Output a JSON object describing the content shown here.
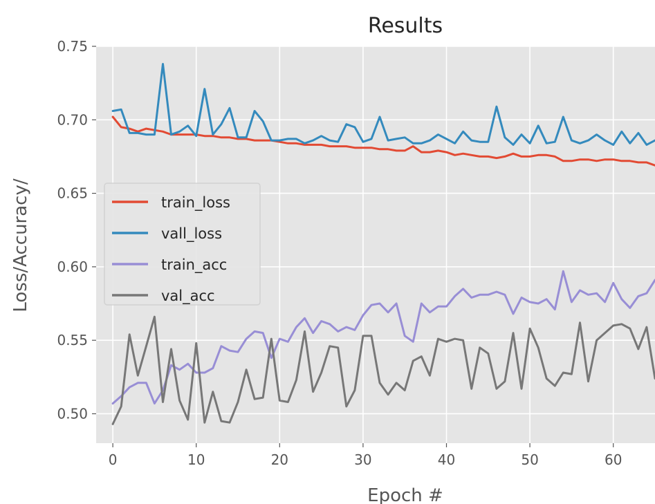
{
  "chart_data": {
    "type": "line",
    "title": "Results",
    "xlabel": "Epoch #",
    "ylabel": "Loss/Accuracy/",
    "xlim": [
      -2,
      65
    ],
    "ylim": [
      0.48,
      0.75
    ],
    "x_ticks": [
      0,
      10,
      20,
      30,
      40,
      50,
      60
    ],
    "y_ticks": [
      0.5,
      0.55,
      0.6,
      0.65,
      0.7,
      0.75
    ],
    "grid": true,
    "legend_position": "center-left",
    "style": "ggplot",
    "x": [
      0,
      1,
      2,
      3,
      4,
      5,
      6,
      7,
      8,
      9,
      10,
      11,
      12,
      13,
      14,
      15,
      16,
      17,
      18,
      19,
      20,
      21,
      22,
      23,
      24,
      25,
      26,
      27,
      28,
      29,
      30,
      31,
      32,
      33,
      34,
      35,
      36,
      37,
      38,
      39,
      40,
      41,
      42,
      43,
      44,
      45,
      46,
      47,
      48,
      49,
      50,
      51,
      52,
      53,
      54,
      55,
      56,
      57,
      58,
      59,
      60,
      61,
      62,
      63,
      64,
      65
    ],
    "series": [
      {
        "name": "train_loss",
        "color": "#E24A33",
        "values": [
          0.702,
          0.695,
          0.694,
          0.692,
          0.694,
          0.693,
          0.692,
          0.69,
          0.69,
          0.69,
          0.69,
          0.689,
          0.689,
          0.688,
          0.688,
          0.687,
          0.687,
          0.686,
          0.686,
          0.686,
          0.685,
          0.684,
          0.684,
          0.683,
          0.683,
          0.683,
          0.682,
          0.682,
          0.682,
          0.681,
          0.681,
          0.681,
          0.68,
          0.68,
          0.679,
          0.679,
          0.682,
          0.678,
          0.678,
          0.679,
          0.678,
          0.676,
          0.677,
          0.676,
          0.675,
          0.675,
          0.674,
          0.675,
          0.677,
          0.675,
          0.675,
          0.676,
          0.676,
          0.675,
          0.672,
          0.672,
          0.673,
          0.673,
          0.672,
          0.673,
          0.673,
          0.672,
          0.672,
          0.671,
          0.671,
          0.669
        ]
      },
      {
        "name": "vall_loss",
        "color": "#348ABD",
        "values": [
          0.706,
          0.707,
          0.691,
          0.691,
          0.69,
          0.69,
          0.738,
          0.69,
          0.692,
          0.696,
          0.689,
          0.721,
          0.69,
          0.697,
          0.708,
          0.688,
          0.688,
          0.706,
          0.699,
          0.686,
          0.686,
          0.687,
          0.687,
          0.684,
          0.686,
          0.689,
          0.686,
          0.685,
          0.697,
          0.695,
          0.685,
          0.687,
          0.702,
          0.686,
          0.687,
          0.688,
          0.684,
          0.684,
          0.686,
          0.69,
          0.687,
          0.684,
          0.692,
          0.686,
          0.685,
          0.685,
          0.709,
          0.688,
          0.683,
          0.69,
          0.684,
          0.696,
          0.684,
          0.685,
          0.702,
          0.686,
          0.684,
          0.686,
          0.69,
          0.686,
          0.683,
          0.692,
          0.684,
          0.691,
          0.683,
          0.686
        ]
      },
      {
        "name": "train_acc",
        "color": "#988ED5",
        "values": [
          0.507,
          0.512,
          0.518,
          0.521,
          0.521,
          0.507,
          0.516,
          0.533,
          0.53,
          0.534,
          0.528,
          0.528,
          0.531,
          0.546,
          0.543,
          0.542,
          0.551,
          0.556,
          0.555,
          0.538,
          0.551,
          0.549,
          0.559,
          0.565,
          0.555,
          0.563,
          0.561,
          0.556,
          0.559,
          0.557,
          0.567,
          0.574,
          0.575,
          0.569,
          0.575,
          0.553,
          0.549,
          0.575,
          0.569,
          0.573,
          0.573,
          0.58,
          0.585,
          0.579,
          0.581,
          0.581,
          0.583,
          0.581,
          0.568,
          0.579,
          0.576,
          0.575,
          0.578,
          0.571,
          0.597,
          0.576,
          0.584,
          0.581,
          0.582,
          0.576,
          0.589,
          0.578,
          0.572,
          0.58,
          0.582,
          0.591
        ]
      },
      {
        "name": "val_acc",
        "color": "#777777",
        "values": [
          0.493,
          0.505,
          0.554,
          0.526,
          0.546,
          0.566,
          0.508,
          0.544,
          0.509,
          0.496,
          0.548,
          0.494,
          0.515,
          0.495,
          0.494,
          0.508,
          0.53,
          0.51,
          0.511,
          0.551,
          0.509,
          0.508,
          0.523,
          0.556,
          0.515,
          0.528,
          0.546,
          0.545,
          0.505,
          0.516,
          0.553,
          0.553,
          0.521,
          0.513,
          0.521,
          0.516,
          0.536,
          0.539,
          0.526,
          0.551,
          0.549,
          0.551,
          0.55,
          0.517,
          0.545,
          0.541,
          0.517,
          0.522,
          0.555,
          0.517,
          0.558,
          0.545,
          0.524,
          0.519,
          0.528,
          0.527,
          0.562,
          0.522,
          0.55,
          0.555,
          0.56,
          0.561,
          0.558,
          0.544,
          0.559,
          0.524
        ]
      }
    ]
  }
}
